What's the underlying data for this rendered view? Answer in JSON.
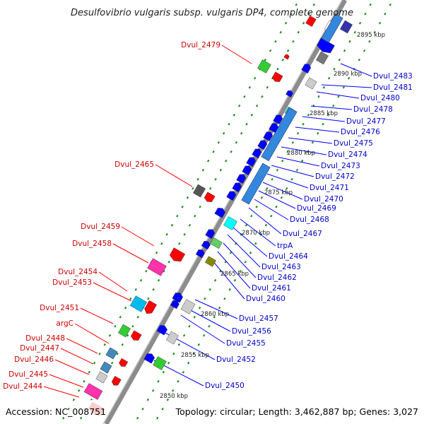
{
  "title": "Desulfovibrio vulgaris subsp. vulgaris DP4, complete genome",
  "footer": {
    "accession": "Accession: NC_008751",
    "topology": "Topology: circular; Length: 3,462,887 bp; Genes: 3,027"
  },
  "colors": {
    "backbone": "#8c8c8c",
    "dot": "#1f8f1f",
    "left_label": "#cc0000",
    "right_label": "#0000cc"
  },
  "kbp_labels": [
    "2895 kbp",
    "2890 kbp",
    "2885 kbp",
    "2880 kbp",
    "2875 kbp",
    "2870 kbp",
    "2865 kbp",
    "2860 kbp",
    "2855 kbp",
    "2850 kbp"
  ],
  "left_genes": [
    "Dvul_2479",
    "Dvul_2465",
    "Dvul_2459",
    "Dvul_2458",
    "Dvul_2454",
    "Dvul_2453",
    "Dvul_2451",
    "argC",
    "Dvul_2448",
    "Dvul_2447",
    "Dvul_2446",
    "Dvul_2445",
    "Dvul_2444"
  ],
  "right_genes": [
    "Dvul_2483",
    "Dvul_2481",
    "Dvul_2480",
    "Dvul_2478",
    "Dvul_2477",
    "Dvul_2476",
    "Dvul_2475",
    "Dvul_2474",
    "Dvul_2473",
    "Dvul_2472",
    "Dvul_2471",
    "Dvul_2470",
    "Dvul_2469",
    "Dvul_2468",
    "Dvul_2467",
    "trpA",
    "Dvul_2464",
    "Dvul_2463",
    "Dvul_2462",
    "Dvul_2461",
    "Dvul_2460",
    "Dvul_2457",
    "Dvul_2456",
    "Dvul_2455",
    "Dvul_2452",
    "Dvul_2450"
  ]
}
